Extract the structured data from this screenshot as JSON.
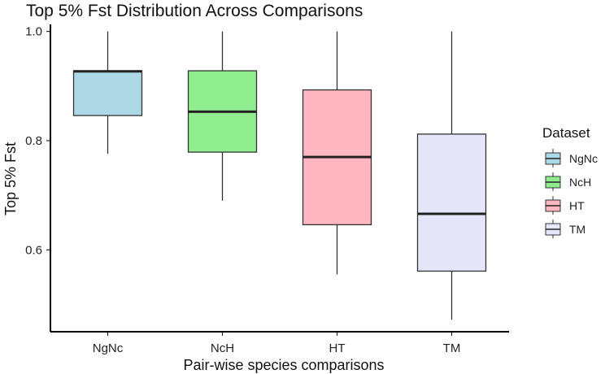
{
  "chart_data": {
    "type": "boxplot",
    "title": "Top 5% Fst Distribution Across Comparisons",
    "xlabel": "Pair-wise species comparisons",
    "ylabel": "Top 5% Fst",
    "ylim": [
      0.45,
      1.01
    ],
    "yticks": [
      0.6,
      0.8,
      1.0
    ],
    "ytick_labels": [
      "0.6",
      "0.8",
      "1.0"
    ],
    "categories": [
      "NgNc",
      "NcH",
      "HT",
      "TM"
    ],
    "boxes": [
      {
        "name": "NgNc",
        "whisker_low": 0.776,
        "q1": 0.846,
        "median": 0.927,
        "q3": 0.928,
        "whisker_high": 1.0,
        "color": "#add8e6"
      },
      {
        "name": "NcH",
        "whisker_low": 0.69,
        "q1": 0.779,
        "median": 0.853,
        "q3": 0.928,
        "whisker_high": 1.0,
        "color": "#90ee90"
      },
      {
        "name": "HT",
        "whisker_low": 0.555,
        "q1": 0.646,
        "median": 0.77,
        "q3": 0.893,
        "whisker_high": 1.0,
        "color": "#ffb6c1"
      },
      {
        "name": "TM",
        "whisker_low": 0.472,
        "q1": 0.561,
        "median": 0.666,
        "q3": 0.812,
        "whisker_high": 1.0,
        "color": "#e6e6fa"
      }
    ],
    "legend": {
      "title": "Dataset",
      "position": "right",
      "entries": [
        "NgNc",
        "NcH",
        "HT",
        "TM"
      ]
    },
    "grid": false
  }
}
